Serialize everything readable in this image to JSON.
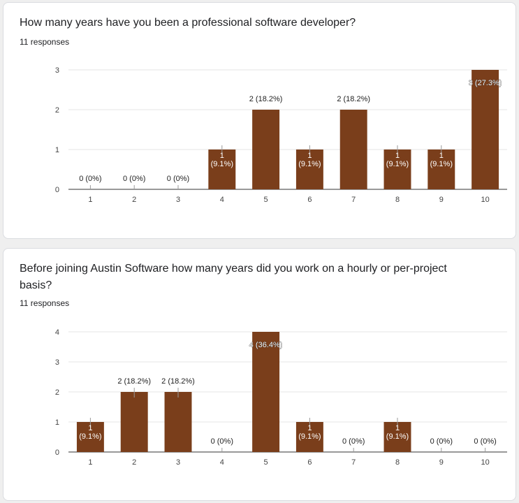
{
  "colors": {
    "bar": "#7a3e1b",
    "grid": "#e6e6e6",
    "axis": "#333333",
    "tick_text": "#444444",
    "label_in": "#ffffff",
    "label_out": "#222222"
  },
  "questions": [
    {
      "title": "How many years have you been a professional software developer?",
      "responses": "11 responses",
      "chart_data": {
        "type": "bar",
        "categories": [
          "1",
          "2",
          "3",
          "4",
          "5",
          "6",
          "7",
          "8",
          "9",
          "10"
        ],
        "values": [
          0,
          0,
          0,
          1,
          2,
          1,
          2,
          1,
          1,
          3
        ],
        "data_labels": [
          "0 (0%)",
          "0 (0%)",
          "0 (0%)",
          "1 (9.1%)",
          "2 (18.2%)",
          "1 (9.1%)",
          "2 (18.2%)",
          "1 (9.1%)",
          "1 (9.1%)",
          "3 (27.3%)"
        ],
        "yticks": [
          "0",
          "1",
          "2",
          "3"
        ],
        "ylim": [
          0,
          3
        ],
        "title": "",
        "xlabel": "",
        "ylabel": "",
        "grid": true
      }
    },
    {
      "title": "Before joining Austin Software how many years did you work on a hourly or per-project basis?",
      "responses": "11 responses",
      "chart_data": {
        "type": "bar",
        "categories": [
          "1",
          "2",
          "3",
          "4",
          "5",
          "6",
          "7",
          "8",
          "9",
          "10"
        ],
        "values": [
          1,
          2,
          2,
          0,
          4,
          1,
          0,
          1,
          0,
          0
        ],
        "data_labels": [
          "1 (9.1%)",
          "2 (18.2%)",
          "2 (18.2%)",
          "0 (0%)",
          "4 (36.4%)",
          "1 (9.1%)",
          "0 (0%)",
          "1 (9.1%)",
          "0 (0%)",
          "0 (0%)"
        ],
        "yticks": [
          "0",
          "1",
          "2",
          "3",
          "4"
        ],
        "ylim": [
          0,
          4
        ],
        "title": "",
        "xlabel": "",
        "ylabel": "",
        "grid": true
      }
    }
  ]
}
